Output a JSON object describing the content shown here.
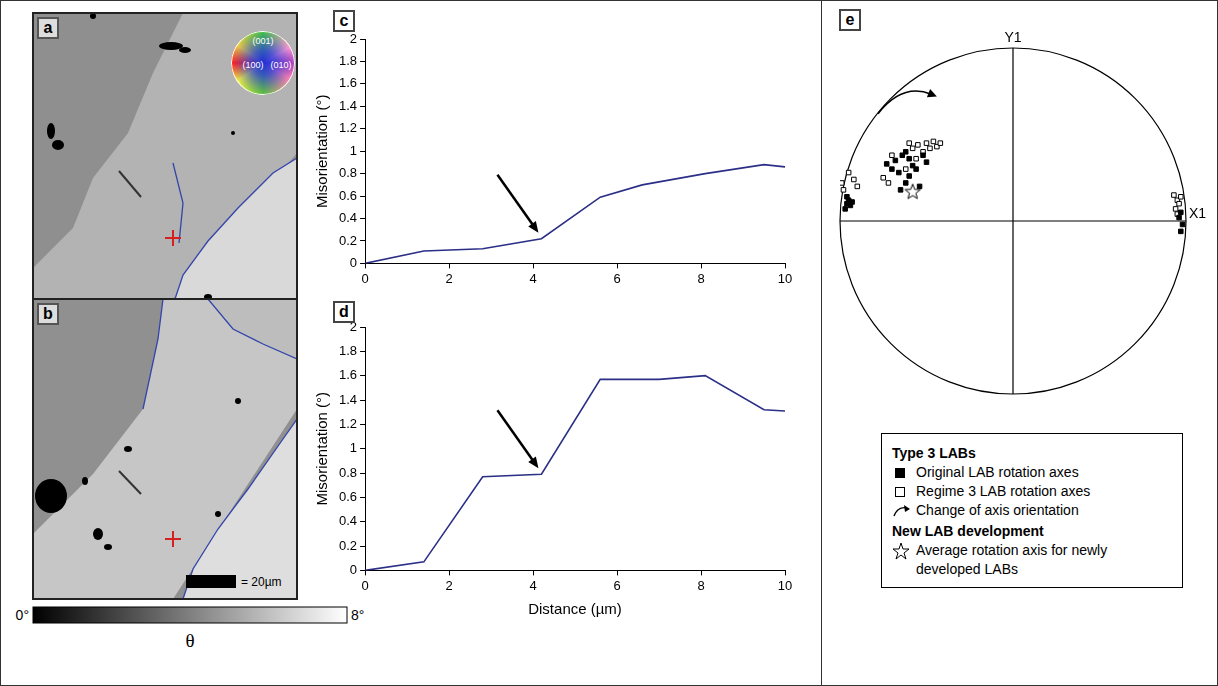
{
  "maps": {
    "a": {
      "label": "a",
      "color_key": [
        "(001)",
        "(100)",
        "(010)"
      ]
    },
    "b": {
      "label": "b",
      "scale_bar": "= 20µm"
    },
    "color_bar": {
      "range": [
        0,
        8
      ],
      "ticks": [
        {
          "value": 0,
          "label": "0°"
        },
        {
          "value": 8,
          "label": "8°"
        }
      ],
      "title": "θ"
    }
  },
  "chart_data": [
    {
      "panel": "c",
      "type": "line",
      "color": "#2b2f86",
      "grid": false,
      "x": [
        0,
        1.4,
        2.8,
        4.2,
        5.6,
        6.6,
        8.1,
        9.5,
        10
      ],
      "values": [
        0,
        0.11,
        0.13,
        0.22,
        0.59,
        0.7,
        0.8,
        0.88,
        0.86
      ],
      "xlim": [
        0,
        10
      ],
      "xticks": [
        0,
        2,
        4,
        6,
        8,
        10
      ],
      "ylim": [
        0,
        2
      ],
      "yticks": [
        0,
        0.2,
        0.4,
        0.6,
        0.8,
        1,
        1.2,
        1.4,
        1.6,
        1.8,
        2
      ],
      "y_label": "Misorientation (°)"
    },
    {
      "panel": "d",
      "type": "line",
      "color": "#2b2f86",
      "grid": false,
      "x": [
        0,
        1.4,
        2.8,
        4.2,
        5.6,
        7,
        8.1,
        9.5,
        10
      ],
      "values": [
        0,
        0.07,
        0.77,
        0.79,
        1.57,
        1.57,
        1.6,
        1.32,
        1.31
      ],
      "xlim": [
        0,
        10
      ],
      "xticks": [
        0,
        2,
        4,
        6,
        8,
        10
      ],
      "ylim": [
        0,
        2
      ],
      "yticks": [
        0,
        0.2,
        0.4,
        0.6,
        0.8,
        1,
        1.2,
        1.4,
        1.6,
        1.8,
        2
      ],
      "x_label": "Distance (µm)",
      "y_label": "Misorientation (°)"
    },
    {
      "panel": "e",
      "type": "scatter",
      "tick_labels": false,
      "grid": false,
      "legend": "bottom",
      "xlim": [
        -1,
        1
      ],
      "ylim": [
        -1,
        1
      ],
      "axis_labels": {
        "x": "X1",
        "y": "Y1"
      },
      "series": [
        {
          "name": "Original LAB rotation axes",
          "group": "Type 3 LABs",
          "color": "#000000",
          "marker": "square",
          "points": [
            [
              -0.96,
              0.1
            ],
            [
              -0.97,
              0.07
            ],
            [
              -0.95,
              0.12
            ],
            [
              -0.94,
              0.09
            ],
            [
              -0.96,
              0.14
            ],
            [
              -0.93,
              0.11
            ],
            [
              -0.73,
              0.33
            ],
            [
              -0.7,
              0.3
            ],
            [
              -0.68,
              0.35
            ],
            [
              -0.66,
              0.28
            ],
            [
              -0.64,
              0.38
            ],
            [
              -0.62,
              0.4
            ],
            [
              -0.6,
              0.36
            ],
            [
              -0.58,
              0.32
            ],
            [
              -0.62,
              0.22
            ],
            [
              -0.65,
              0.18
            ],
            [
              -0.6,
              0.26
            ],
            [
              -0.56,
              0.3
            ],
            [
              -0.54,
              0.2
            ],
            [
              -0.52,
              0.38
            ],
            [
              -0.5,
              0.34
            ],
            [
              0.97,
              0.05
            ],
            [
              0.98,
              -0.02
            ],
            [
              0.97,
              -0.06
            ],
            [
              0.96,
              0.02
            ]
          ]
        },
        {
          "name": "Regime 3 LAB rotation axes",
          "group": "Type 3 LABs",
          "color": "#000000",
          "marker": "open_square",
          "points": [
            [
              -0.99,
              0.22
            ],
            [
              -0.98,
              0.18
            ],
            [
              -0.95,
              0.28
            ],
            [
              -0.92,
              0.24
            ],
            [
              -0.9,
              0.2
            ],
            [
              -0.75,
              0.25
            ],
            [
              -0.72,
              0.22
            ],
            [
              -0.7,
              0.38
            ],
            [
              -0.62,
              0.3
            ],
            [
              -0.58,
              0.42
            ],
            [
              -0.55,
              0.44
            ],
            [
              -0.52,
              0.4
            ],
            [
              -0.5,
              0.45
            ],
            [
              -0.48,
              0.42
            ],
            [
              -0.46,
              0.46
            ],
            [
              -0.44,
              0.43
            ],
            [
              -0.42,
              0.45
            ],
            [
              -0.56,
              0.36
            ],
            [
              -0.6,
              0.45
            ],
            [
              0.93,
              0.15
            ],
            [
              0.95,
              0.12
            ],
            [
              0.96,
              0.1
            ],
            [
              0.94,
              0.07
            ],
            [
              0.97,
              0.14
            ],
            [
              0.95,
              0.04
            ]
          ]
        },
        {
          "name": "Average rotation axis for newly developed LABs",
          "group": "New LAB development",
          "color": "#000000",
          "marker": "star",
          "points": [
            [
              -0.58,
              0.17
            ]
          ]
        }
      ],
      "annotations": [
        {
          "text": "Change of axis orientation",
          "group": "Type 3 LABs",
          "marker": "curved_arrow"
        }
      ]
    }
  ]
}
